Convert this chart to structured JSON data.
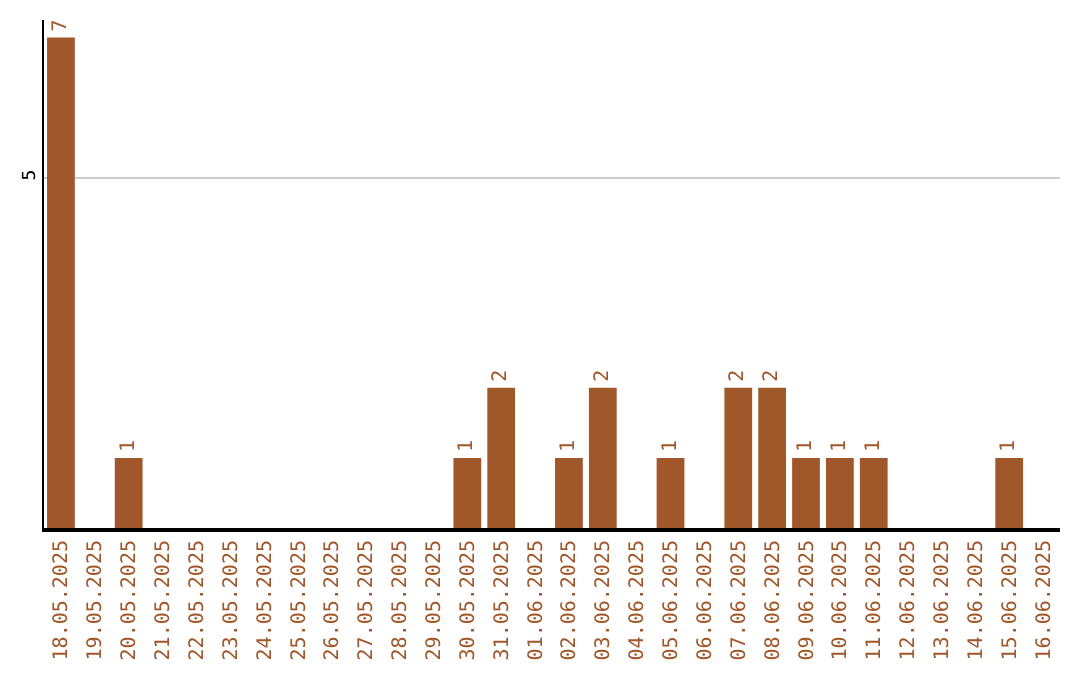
{
  "chart_data": {
    "type": "bar",
    "categories": [
      "18.05.2025",
      "19.05.2025",
      "20.05.2025",
      "21.05.2025",
      "22.05.2025",
      "23.05.2025",
      "24.05.2025",
      "25.05.2025",
      "26.05.2025",
      "27.05.2025",
      "28.05.2025",
      "29.05.2025",
      "30.05.2025",
      "31.05.2025",
      "01.06.2025",
      "02.06.2025",
      "03.06.2025",
      "04.06.2025",
      "05.06.2025",
      "06.06.2025",
      "07.06.2025",
      "08.06.2025",
      "09.06.2025",
      "10.06.2025",
      "11.06.2025",
      "12.06.2025",
      "13.06.2025",
      "14.06.2025",
      "15.06.2025",
      "16.06.2025"
    ],
    "values": [
      7,
      0,
      1,
      0,
      0,
      0,
      0,
      0,
      0,
      0,
      0,
      0,
      1,
      2,
      0,
      1,
      2,
      0,
      1,
      0,
      2,
      2,
      1,
      1,
      1,
      0,
      0,
      0,
      1,
      0
    ],
    "value_labels": [
      "7",
      null,
      "1",
      null,
      null,
      null,
      null,
      null,
      null,
      null,
      null,
      null,
      "1",
      "2",
      null,
      "1",
      "2",
      null,
      "1",
      null,
      "2",
      "2",
      "1",
      "1",
      "1",
      null,
      null,
      null,
      "1",
      null
    ],
    "color": "#a0572a",
    "ylim": [
      0,
      7.25
    ],
    "yticks": [
      5
    ],
    "grid": "y",
    "legend": false
  }
}
